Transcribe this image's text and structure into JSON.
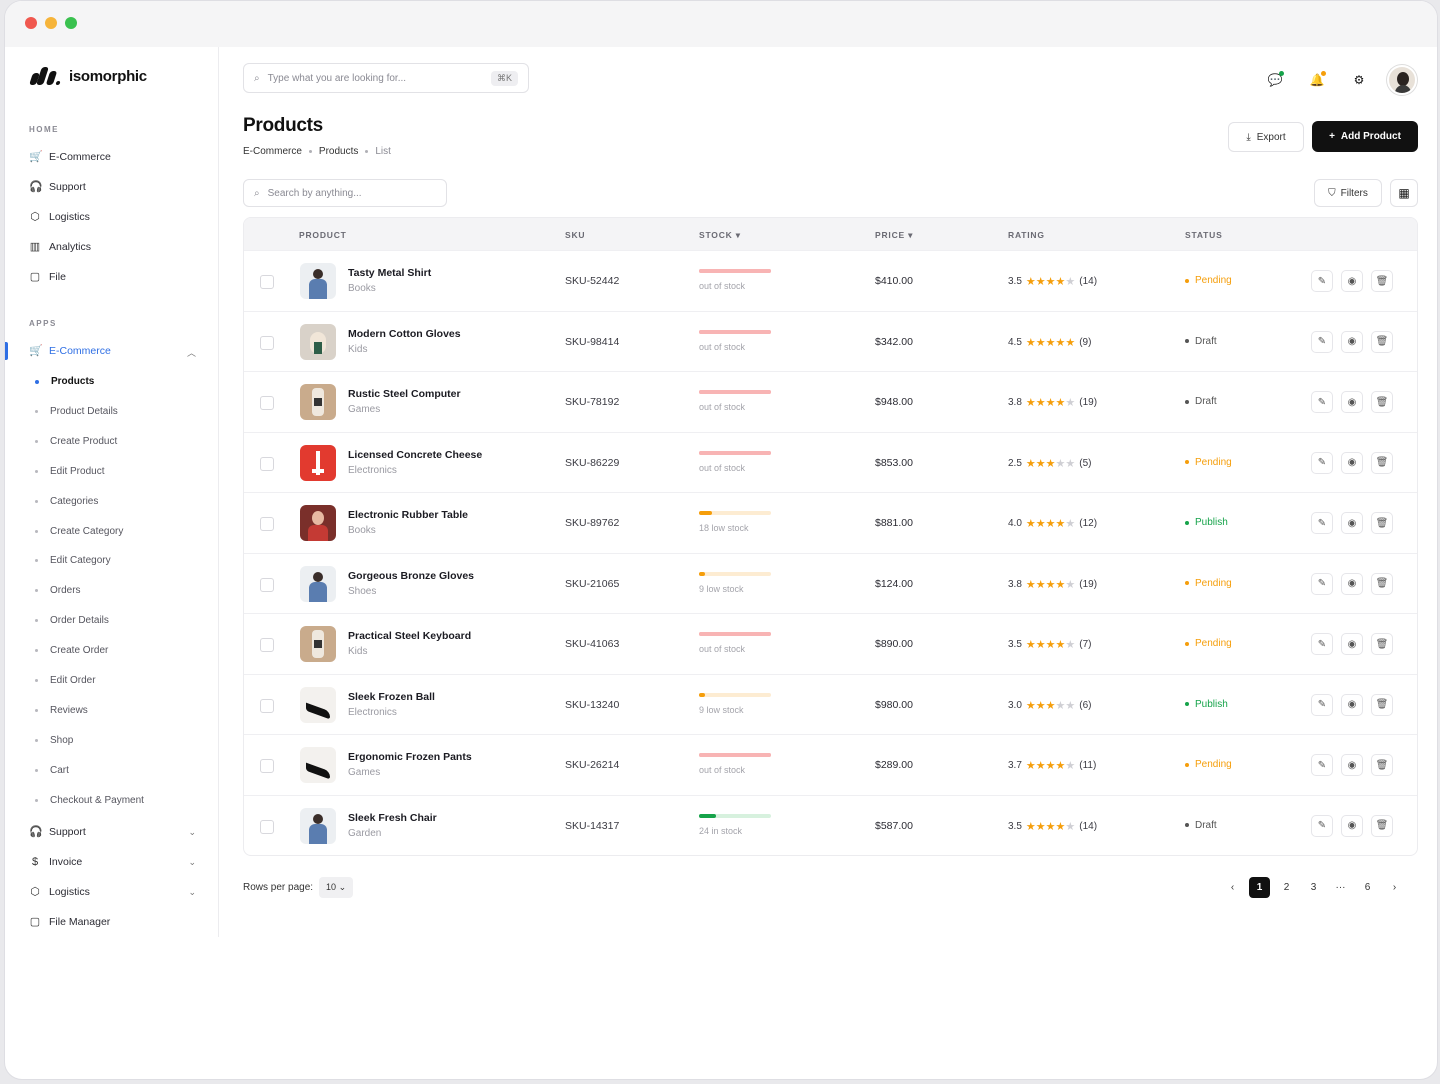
{
  "app": {
    "logo_text": "isomorphic"
  },
  "sidebar": {
    "home_label": "HOME",
    "home_items": [
      {
        "label": "E-Commerce",
        "icon": "cart-icon"
      },
      {
        "label": "Support",
        "icon": "headset-icon"
      },
      {
        "label": "Logistics",
        "icon": "box-icon"
      },
      {
        "label": "Analytics",
        "icon": "chart-icon"
      },
      {
        "label": "File",
        "icon": "file-icon"
      }
    ],
    "apps_label": "APPS",
    "apps_active": {
      "label": "E-Commerce",
      "icon": "cart-icon"
    },
    "apps_sub": [
      "Products",
      "Product Details",
      "Create Product",
      "Edit Product",
      "Categories",
      "Create Category",
      "Edit Category",
      "Orders",
      "Order Details",
      "Create Order",
      "Edit Order",
      "Reviews",
      "Shop",
      "Cart",
      "Checkout & Payment"
    ],
    "apps_more": [
      {
        "label": "Support",
        "icon": "headset-icon"
      },
      {
        "label": "Invoice",
        "icon": "dollar-icon"
      },
      {
        "label": "Logistics",
        "icon": "box-icon"
      },
      {
        "label": "File Manager",
        "icon": "file-icon"
      }
    ]
  },
  "header": {
    "search_placeholder": "Type what you are looking for...",
    "search_shortcut": "⌘K"
  },
  "page": {
    "title": "Products",
    "breadcrumb": [
      "E-Commerce",
      "Products",
      "List"
    ],
    "export_label": "Export",
    "add_label": "Add Product",
    "table_search_placeholder": "Search by anything...",
    "filters_label": "Filters"
  },
  "table": {
    "columns": [
      "PRODUCT",
      "SKU",
      "STOCK ▾",
      "PRICE ▾",
      "RATING",
      "STATUS"
    ],
    "rows": [
      {
        "name": "Tasty Metal Shirt",
        "category": "Books",
        "sku": "SKU-52442",
        "stock_text": "out of stock",
        "stock_level": 0,
        "price": "$410.00",
        "rating": "3.5",
        "stars": "★★★★☆",
        "reviews": "(14)",
        "status": "Pending",
        "thumb": "man"
      },
      {
        "name": "Modern Cotton Gloves",
        "category": "Kids",
        "sku": "SKU-98414",
        "stock_text": "out of stock",
        "stock_level": 0,
        "price": "$342.00",
        "rating": "4.5",
        "stars": "★★★★★",
        "reviews": "(9)",
        "status": "Draft",
        "thumb": "hand"
      },
      {
        "name": "Rustic Steel Computer",
        "category": "Games",
        "sku": "SKU-78192",
        "stock_text": "out of stock",
        "stock_level": 0,
        "price": "$948.00",
        "rating": "3.8",
        "stars": "★★★★☆",
        "reviews": "(19)",
        "status": "Draft",
        "thumb": "bottle"
      },
      {
        "name": "Licensed Concrete Cheese",
        "category": "Electronics",
        "sku": "SKU-86229",
        "stock_text": "out of stock",
        "stock_level": 0,
        "price": "$853.00",
        "rating": "2.5",
        "stars": "★★★☆☆",
        "reviews": "(5)",
        "status": "Pending",
        "thumb": "red"
      },
      {
        "name": "Electronic Rubber Table",
        "category": "Books",
        "sku": "SKU-89762",
        "stock_text": "18 low stock",
        "stock_level": 0.18,
        "price": "$881.00",
        "rating": "4.0",
        "stars": "★★★★☆",
        "reviews": "(12)",
        "status": "Publish",
        "thumb": "woman"
      },
      {
        "name": "Gorgeous Bronze Gloves",
        "category": "Shoes",
        "sku": "SKU-21065",
        "stock_text": "9 low stock",
        "stock_level": 0.09,
        "price": "$124.00",
        "rating": "3.8",
        "stars": "★★★★☆",
        "reviews": "(19)",
        "status": "Pending",
        "thumb": "man"
      },
      {
        "name": "Practical Steel Keyboard",
        "category": "Kids",
        "sku": "SKU-41063",
        "stock_text": "out of stock",
        "stock_level": 0,
        "price": "$890.00",
        "rating": "3.5",
        "stars": "★★★★☆",
        "reviews": "(7)",
        "status": "Pending",
        "thumb": "bottle"
      },
      {
        "name": "Sleek Frozen Ball",
        "category": "Electronics",
        "sku": "SKU-13240",
        "stock_text": "9 low stock",
        "stock_level": 0.09,
        "price": "$980.00",
        "rating": "3.0",
        "stars": "★★★☆☆",
        "reviews": "(6)",
        "status": "Publish",
        "thumb": "shoe"
      },
      {
        "name": "Ergonomic Frozen Pants",
        "category": "Games",
        "sku": "SKU-26214",
        "stock_text": "out of stock",
        "stock_level": 0,
        "price": "$289.00",
        "rating": "3.7",
        "stars": "★★★★☆",
        "reviews": "(11)",
        "status": "Pending",
        "thumb": "shoe"
      },
      {
        "name": "Sleek Fresh Chair",
        "category": "Garden",
        "sku": "SKU-14317",
        "stock_text": "24 in stock",
        "stock_level": 0.24,
        "price": "$587.00",
        "rating": "3.5",
        "stars": "★★★★☆",
        "reviews": "(14)",
        "status": "Draft",
        "thumb": "man"
      }
    ]
  },
  "pagination": {
    "rows_label": "Rows per page:",
    "rows_value": "10",
    "pages": [
      "1",
      "2",
      "3",
      "···",
      "6"
    ],
    "current": "1"
  },
  "colors": {
    "accent": "#2f6fe4",
    "pending": "#f59e0b",
    "publish": "#16a34a",
    "draft": "#555555",
    "out_of_stock": "#f8b4b4",
    "low_stock": "#f59e0b",
    "in_stock": "#16a34a",
    "star": "#f59e0b"
  }
}
